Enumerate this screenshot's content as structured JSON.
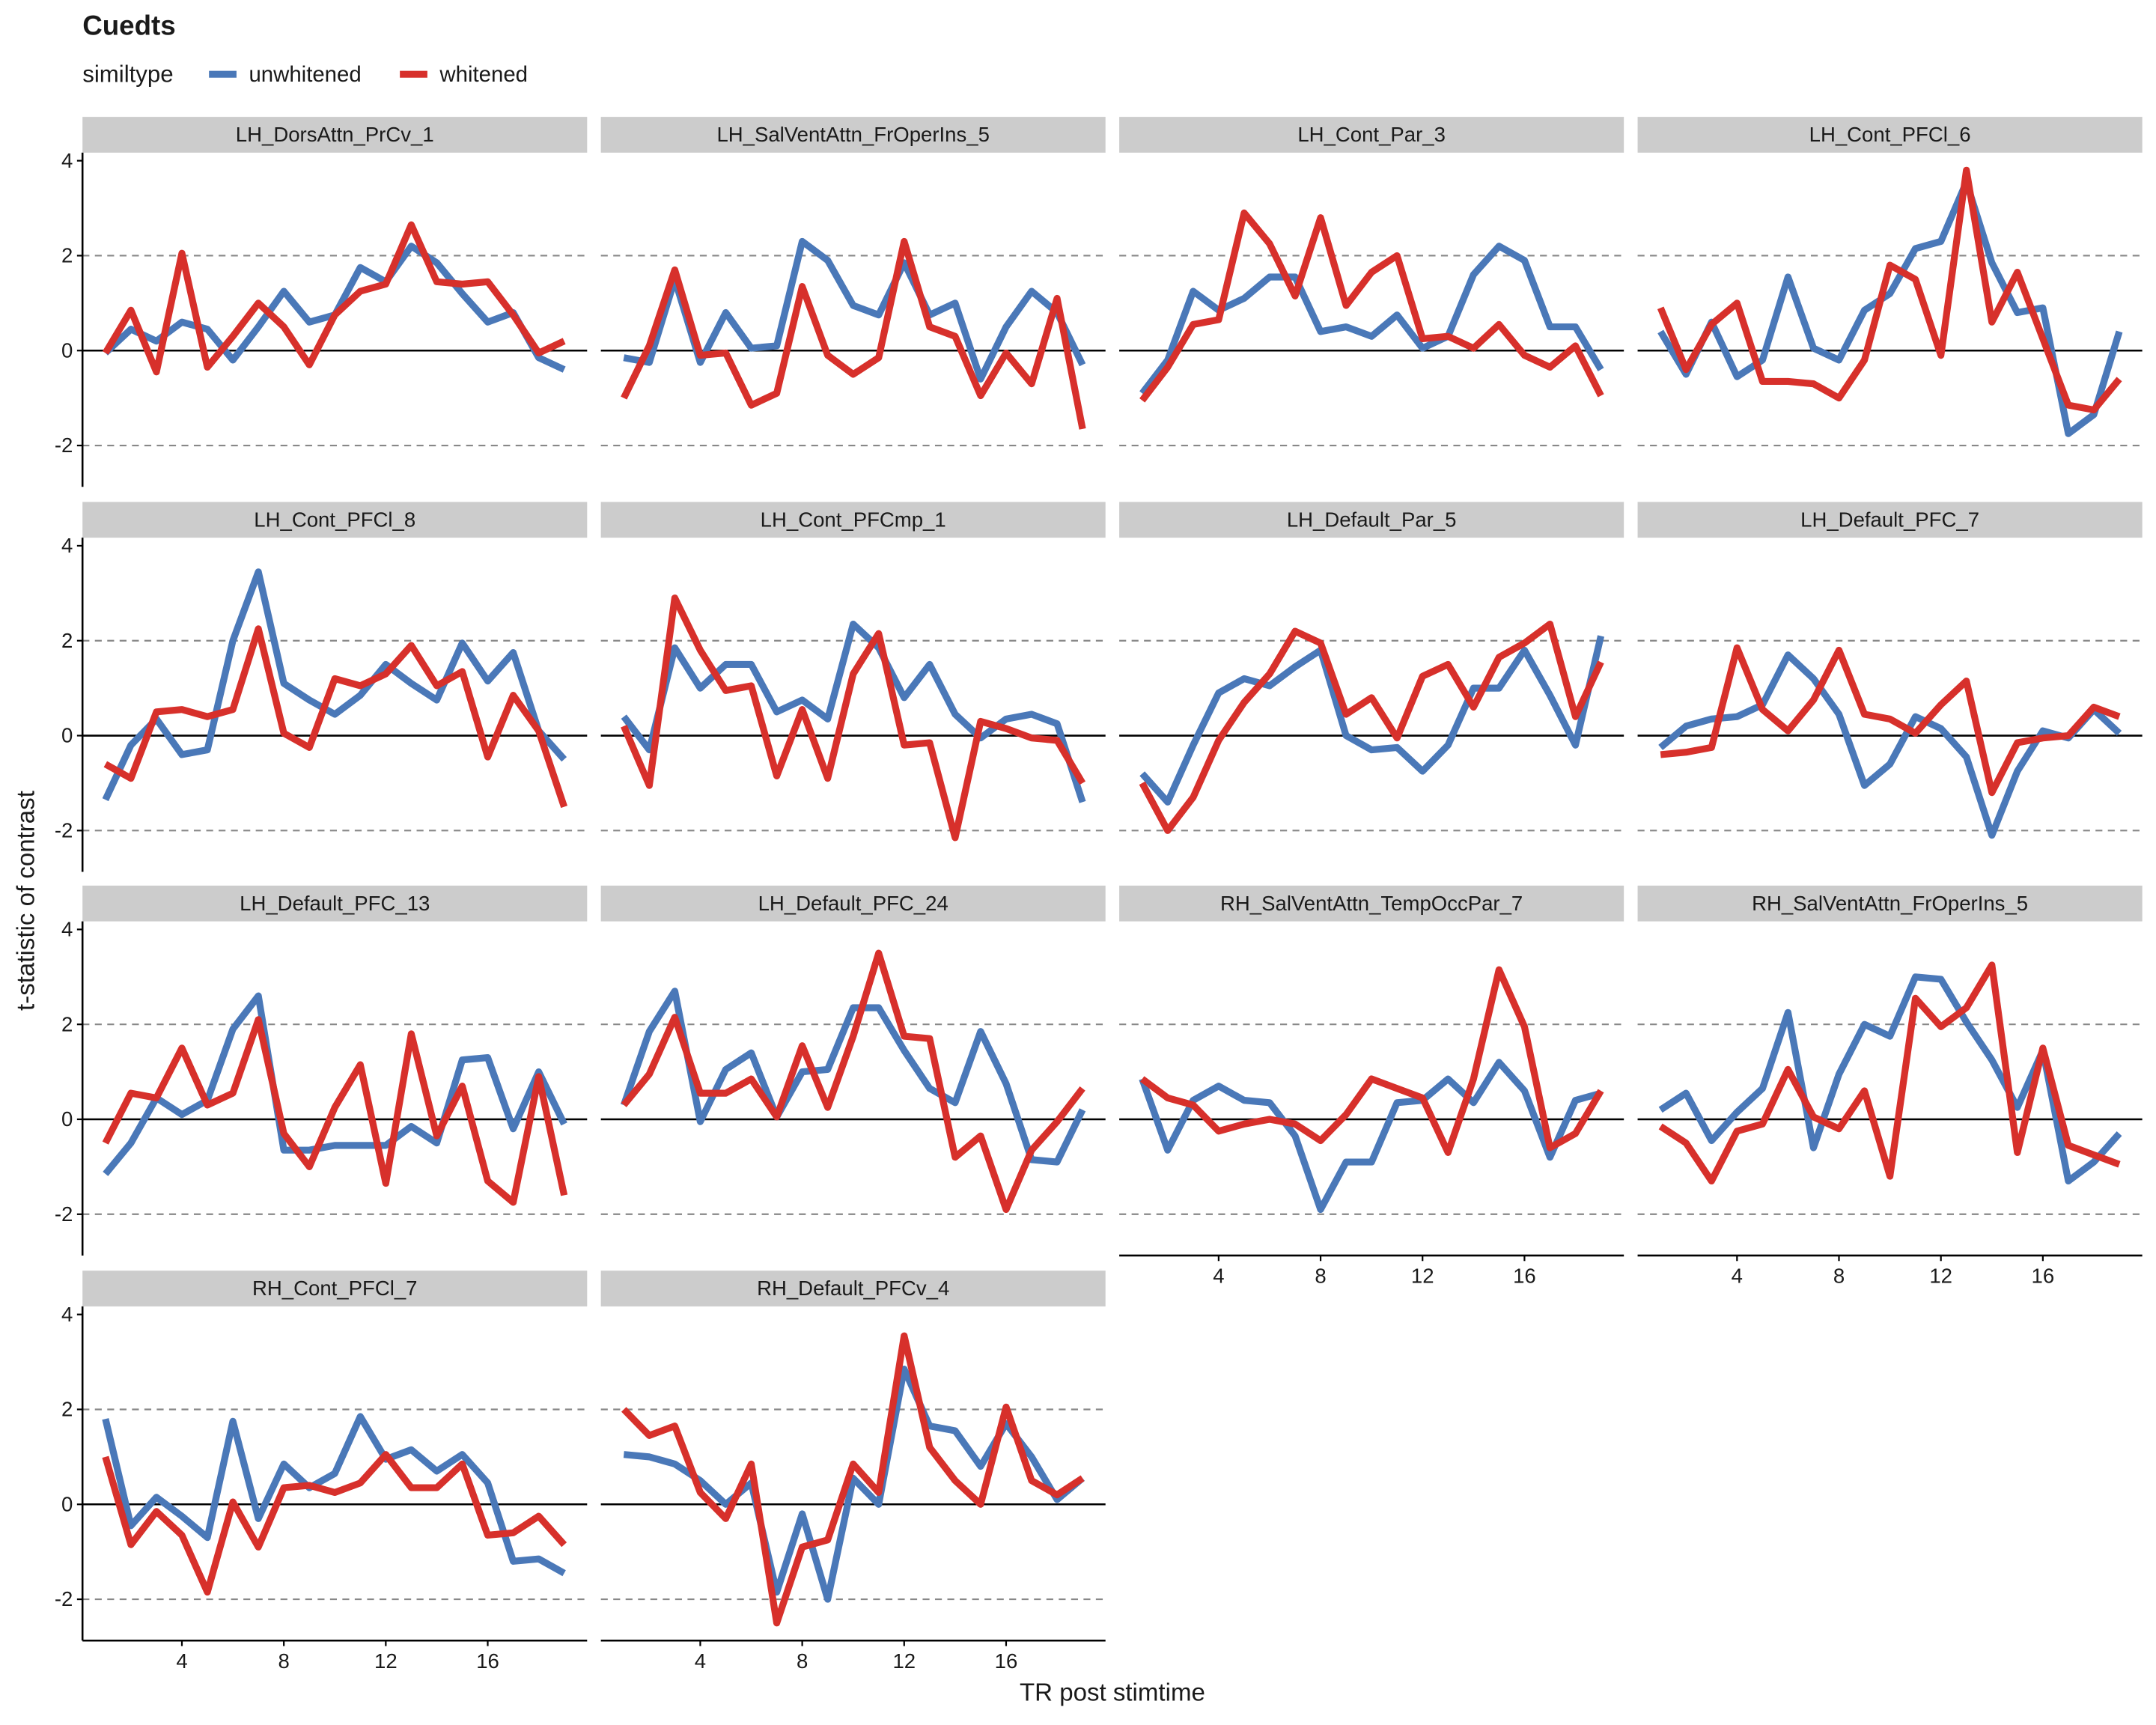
{
  "chart_data": {
    "type": "line",
    "title": "Cuedts",
    "legend_title": "similtype",
    "x_label": "TR post stimtime",
    "y_label": "t-statistic of contrast",
    "x": [
      1,
      2,
      3,
      4,
      5,
      6,
      7,
      8,
      9,
      10,
      11,
      12,
      13,
      14,
      15,
      16,
      17,
      18,
      19
    ],
    "xlim": [
      0.1,
      19.9
    ],
    "xticks": [
      4,
      8,
      12,
      16
    ],
    "ylim": [
      -2.87,
      4.17
    ],
    "yticks": [
      -2,
      0,
      2,
      4
    ],
    "hlines": [
      {
        "y": -2,
        "linetype": "dashed"
      },
      {
        "y": 0,
        "linetype": "solid"
      },
      {
        "y": 2,
        "linetype": "dashed"
      }
    ],
    "series": [
      {
        "name": "unwhitened",
        "color": "#4a78b8"
      },
      {
        "name": "whitened",
        "color": "#d7302b"
      }
    ],
    "panels": [
      {
        "title": "LH_DorsAttn_PrCv_1",
        "values": [
          [
            -0.05,
            0.45,
            0.2,
            0.6,
            0.45,
            -0.2,
            0.5,
            1.25,
            0.6,
            0.75,
            1.75,
            1.45,
            2.2,
            1.85,
            1.2,
            0.6,
            0.8,
            -0.15,
            -0.4
          ],
          [
            -0.05,
            0.85,
            -0.45,
            2.05,
            -0.35,
            0.3,
            1.0,
            0.5,
            -0.3,
            0.75,
            1.25,
            1.4,
            2.65,
            1.45,
            1.4,
            1.45,
            0.75,
            -0.05,
            0.2
          ]
        ]
      },
      {
        "title": "LH_SalVentAttn_FrOperIns_5",
        "values": [
          [
            -0.15,
            -0.25,
            1.5,
            -0.25,
            0.8,
            0.05,
            0.1,
            2.3,
            1.9,
            0.95,
            0.75,
            1.85,
            0.75,
            1.0,
            -0.6,
            0.5,
            1.25,
            0.8,
            -0.3
          ],
          [
            -1.0,
            0.1,
            1.7,
            -0.1,
            -0.05,
            -1.15,
            -0.9,
            1.35,
            -0.1,
            -0.5,
            -0.15,
            2.3,
            0.5,
            0.3,
            -0.95,
            -0.05,
            -0.7,
            1.1,
            -1.65
          ]
        ]
      },
      {
        "title": "LH_Cont_Par_3",
        "values": [
          [
            -0.9,
            -0.2,
            1.25,
            0.85,
            1.1,
            1.55,
            1.55,
            0.4,
            0.5,
            0.3,
            0.75,
            0.05,
            0.3,
            1.6,
            2.2,
            1.9,
            0.5,
            0.5,
            -0.4
          ],
          [
            -1.05,
            -0.35,
            0.55,
            0.65,
            2.9,
            2.25,
            1.15,
            2.8,
            0.95,
            1.65,
            2.0,
            0.25,
            0.3,
            0.05,
            0.55,
            -0.1,
            -0.35,
            0.1,
            -0.95
          ]
        ]
      },
      {
        "title": "LH_Cont_PFCl_6",
        "values": [
          [
            0.4,
            -0.5,
            0.6,
            -0.55,
            -0.2,
            1.55,
            0.05,
            -0.2,
            0.85,
            1.2,
            2.15,
            2.3,
            3.55,
            1.85,
            0.8,
            0.9,
            -1.75,
            -1.35,
            0.4
          ],
          [
            0.9,
            -0.4,
            0.55,
            1.0,
            -0.65,
            -0.65,
            -0.7,
            -1.0,
            -0.2,
            1.8,
            1.5,
            -0.1,
            3.8,
            0.6,
            1.65,
            0.25,
            -1.15,
            -1.25,
            -0.6
          ]
        ]
      },
      {
        "title": "LH_Cont_PFCl_8",
        "values": [
          [
            -1.35,
            -0.2,
            0.35,
            -0.4,
            -0.3,
            2.0,
            3.45,
            1.1,
            0.75,
            0.45,
            0.85,
            1.5,
            1.1,
            0.75,
            1.95,
            1.15,
            1.75,
            0.1,
            -0.5
          ],
          [
            -0.6,
            -0.9,
            0.5,
            0.55,
            0.4,
            0.55,
            2.25,
            0.05,
            -0.25,
            1.2,
            1.05,
            1.3,
            1.9,
            1.05,
            1.35,
            -0.45,
            0.85,
            0.1,
            -1.5
          ]
        ]
      },
      {
        "title": "LH_Cont_PFCmp_1",
        "values": [
          [
            0.4,
            -0.3,
            1.85,
            1.0,
            1.5,
            1.5,
            0.5,
            0.75,
            0.35,
            2.35,
            1.85,
            0.8,
            1.5,
            0.45,
            -0.05,
            0.35,
            0.45,
            0.25,
            -1.4
          ],
          [
            0.2,
            -1.05,
            2.9,
            1.8,
            0.95,
            1.05,
            -0.85,
            0.55,
            -0.9,
            1.3,
            2.15,
            -0.2,
            -0.15,
            -2.15,
            0.3,
            0.15,
            -0.05,
            -0.1,
            -1.0
          ]
        ]
      },
      {
        "title": "LH_Default_Par_5",
        "values": [
          [
            -0.8,
            -1.4,
            -0.2,
            0.9,
            1.2,
            1.05,
            1.45,
            1.8,
            0.0,
            -0.3,
            -0.25,
            -0.75,
            -0.2,
            1.0,
            1.0,
            1.8,
            0.85,
            -0.2,
            2.1
          ],
          [
            -1.0,
            -2.0,
            -1.3,
            -0.1,
            0.7,
            1.3,
            2.2,
            1.95,
            0.45,
            0.8,
            -0.05,
            1.25,
            1.5,
            0.6,
            1.65,
            1.95,
            2.35,
            0.4,
            1.55
          ]
        ]
      },
      {
        "title": "LH_Default_PFC_7",
        "values": [
          [
            -0.25,
            0.2,
            0.35,
            0.4,
            0.65,
            1.7,
            1.2,
            0.45,
            -1.05,
            -0.6,
            0.4,
            0.15,
            -0.45,
            -2.1,
            -0.75,
            0.1,
            -0.05,
            0.55,
            0.05
          ],
          [
            -0.4,
            -0.35,
            -0.25,
            1.85,
            0.55,
            0.1,
            0.75,
            1.8,
            0.45,
            0.35,
            0.05,
            0.65,
            1.15,
            -1.2,
            -0.15,
            -0.05,
            0.0,
            0.6,
            0.4
          ]
        ]
      },
      {
        "title": "LH_Default_PFC_13",
        "values": [
          [
            -1.15,
            -0.5,
            0.45,
            0.1,
            0.4,
            1.9,
            2.6,
            -0.65,
            -0.65,
            -0.55,
            -0.55,
            -0.55,
            -0.15,
            -0.5,
            1.25,
            1.3,
            -0.2,
            1.0,
            -0.1
          ],
          [
            -0.5,
            0.55,
            0.45,
            1.5,
            0.3,
            0.55,
            2.1,
            -0.3,
            -1.0,
            0.25,
            1.15,
            -1.35,
            1.8,
            -0.35,
            0.7,
            -1.3,
            -1.75,
            0.9,
            -1.6
          ]
        ]
      },
      {
        "title": "LH_Default_PFC_24",
        "values": [
          [
            0.3,
            1.85,
            2.7,
            -0.05,
            1.05,
            1.4,
            0.05,
            1.0,
            1.05,
            2.35,
            2.35,
            1.45,
            0.65,
            0.35,
            1.85,
            0.75,
            -0.85,
            -0.9,
            0.2
          ],
          [
            0.3,
            0.95,
            2.15,
            0.55,
            0.55,
            0.85,
            0.05,
            1.55,
            0.25,
            1.75,
            3.5,
            1.75,
            1.7,
            -0.8,
            -0.35,
            -1.9,
            -0.65,
            -0.05,
            0.65
          ]
        ]
      },
      {
        "title": "RH_SalVentAttn_TempOccPar_7",
        "values": [
          [
            0.85,
            -0.65,
            0.4,
            0.7,
            0.4,
            0.35,
            -0.35,
            -1.9,
            -0.9,
            -0.9,
            0.35,
            0.4,
            0.85,
            0.35,
            1.2,
            0.6,
            -0.8,
            0.4,
            0.55
          ],
          [
            0.85,
            0.45,
            0.3,
            -0.25,
            -0.1,
            0.0,
            -0.1,
            -0.45,
            0.1,
            0.85,
            0.65,
            0.45,
            -0.7,
            0.85,
            3.15,
            1.95,
            -0.6,
            -0.3,
            0.6
          ]
        ]
      },
      {
        "title": "RH_SalVentAttn_FrOperIns_5",
        "values": [
          [
            0.2,
            0.55,
            -0.45,
            0.15,
            0.65,
            2.25,
            -0.6,
            0.95,
            2.0,
            1.75,
            3.0,
            2.95,
            2.05,
            1.25,
            0.25,
            1.45,
            -1.3,
            -0.9,
            -0.3
          ],
          [
            -0.15,
            -0.5,
            -1.3,
            -0.25,
            -0.1,
            1.05,
            0.05,
            -0.2,
            0.6,
            -1.2,
            2.55,
            1.95,
            2.35,
            3.25,
            -0.7,
            1.5,
            -0.55,
            -0.75,
            -0.95
          ]
        ]
      },
      {
        "title": "RH_Cont_PFCl_7",
        "values": [
          [
            1.8,
            -0.45,
            0.15,
            -0.25,
            -0.7,
            1.75,
            -0.3,
            0.85,
            0.35,
            0.65,
            1.85,
            0.95,
            1.15,
            0.7,
            1.05,
            0.45,
            -1.2,
            -1.15,
            -1.45
          ],
          [
            1.0,
            -0.85,
            -0.15,
            -0.65,
            -1.85,
            0.05,
            -0.9,
            0.35,
            0.4,
            0.25,
            0.45,
            1.05,
            0.35,
            0.35,
            0.85,
            -0.65,
            -0.6,
            -0.25,
            -0.85
          ]
        ]
      },
      {
        "title": "RH_Default_PFCv_4",
        "values": [
          [
            1.05,
            1.0,
            0.85,
            0.5,
            0.0,
            0.45,
            -1.85,
            -0.2,
            -2.0,
            0.55,
            0.0,
            2.85,
            1.65,
            1.55,
            0.8,
            1.7,
            1.0,
            0.1,
            0.55
          ],
          [
            2.0,
            1.45,
            1.65,
            0.25,
            -0.3,
            0.85,
            -2.5,
            -0.9,
            -0.75,
            0.85,
            0.25,
            3.55,
            1.2,
            0.5,
            0.0,
            2.05,
            0.5,
            0.2,
            0.55
          ]
        ]
      }
    ]
  }
}
